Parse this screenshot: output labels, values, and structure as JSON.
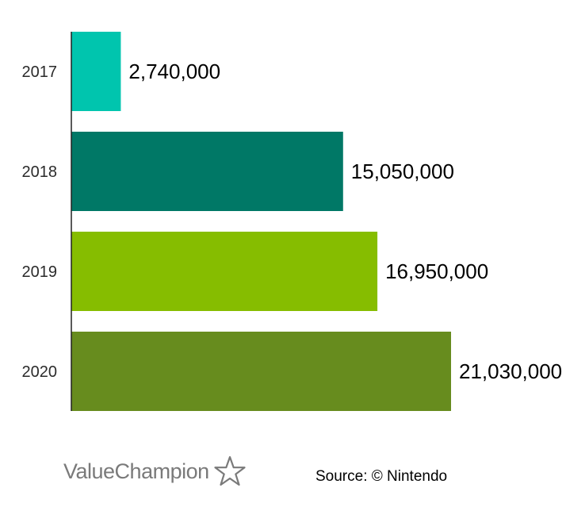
{
  "chart_data": {
    "type": "bar",
    "orientation": "horizontal",
    "categories": [
      "2017",
      "2018",
      "2019",
      "2020"
    ],
    "values": [
      2740000,
      15050000,
      16950000,
      21030000
    ],
    "value_labels": [
      "2,740,000",
      "15,050,000",
      "16,950,000",
      "21,030,000"
    ],
    "bar_colors": [
      "#00c5ae",
      "#007866",
      "#86bd00",
      "#678c1e"
    ],
    "xlim": [
      0,
      21030000
    ],
    "grid": false,
    "legend": "none"
  },
  "footer": {
    "brand": "ValueChampion",
    "brand_icon": "star-outline-icon",
    "source": "Source: © Nintendo"
  }
}
